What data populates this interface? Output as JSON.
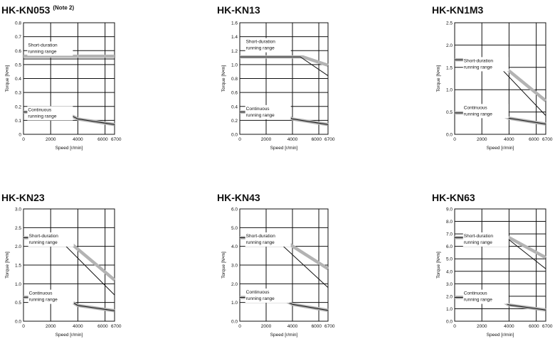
{
  "page": {
    "xlabel": "Speed [r/min]",
    "ylabel": "Torque [N•m]",
    "region_short": [
      "Short-duration",
      "running range"
    ],
    "region_continuous": [
      "Continuous",
      "running range"
    ]
  },
  "chart_data": [
    {
      "type": "line",
      "title": "HK-KN053",
      "title_note": "(Note 2)",
      "xlabel": "Speed [r/min]",
      "ylabel": "Torque [N•m]",
      "xlim": [
        0,
        6700
      ],
      "ylim": [
        0,
        0.8
      ],
      "x_ticks": [
        0,
        2000,
        4000,
        6000,
        6700
      ],
      "y_ticks": [
        0,
        0.1,
        0.2,
        0.3,
        0.4,
        0.5,
        0.6,
        0.7,
        0.8
      ],
      "y_tick_labels": [
        "0",
        "0.1",
        "0.2",
        "0.3",
        "0.4",
        "0.5",
        "0.6",
        "0.7",
        "0.8"
      ],
      "grid": true,
      "series": [
        {
          "role": "short-duration",
          "x": [
            0,
            6700
          ],
          "y": [
            0.56,
            0.56
          ]
        },
        {
          "role": "short-duration-lower",
          "x": [
            0,
            6700
          ],
          "y": [
            0.54,
            0.54
          ]
        },
        {
          "role": "continuous",
          "x": [
            0,
            3000,
            4000,
            6700
          ],
          "y": [
            0.16,
            0.16,
            0.11,
            0.07
          ]
        }
      ]
    },
    {
      "type": "line",
      "title": "HK-KN13",
      "xlabel": "Speed [r/min]",
      "ylabel": "Torque [N•m]",
      "xlim": [
        0,
        6700
      ],
      "ylim": [
        0,
        1.6
      ],
      "x_ticks": [
        0,
        2000,
        4000,
        6000,
        6700
      ],
      "y_ticks": [
        0,
        0.2,
        0.4,
        0.6,
        0.8,
        1.0,
        1.2,
        1.4,
        1.6
      ],
      "y_tick_labels": [
        "0.0",
        "0.2",
        "0.4",
        "0.6",
        "0.8",
        "1.0",
        "1.2",
        "1.4",
        "1.6"
      ],
      "grid": true,
      "series": [
        {
          "role": "short-duration",
          "x": [
            0,
            4800,
            6700
          ],
          "y": [
            1.11,
            1.11,
            0.99
          ]
        },
        {
          "role": "short-duration-lower",
          "x": [
            0,
            4600,
            6700
          ],
          "y": [
            1.11,
            1.11,
            0.84
          ]
        },
        {
          "role": "continuous",
          "x": [
            0,
            3000,
            4000,
            6700
          ],
          "y": [
            0.32,
            0.32,
            0.22,
            0.14
          ]
        }
      ]
    },
    {
      "type": "line",
      "title": "HK-KN1M3",
      "xlabel": "Speed [r/min]",
      "ylabel": "Torque [N•m]",
      "xlim": [
        0,
        6700
      ],
      "ylim": [
        0,
        2.5
      ],
      "x_ticks": [
        0,
        2000,
        4000,
        6000,
        6700
      ],
      "y_ticks": [
        0,
        0.5,
        1.0,
        1.5,
        2.0,
        2.5
      ],
      "y_tick_labels": [
        "0.0",
        "0.5",
        "1.0",
        "1.5",
        "2.0",
        "2.5"
      ],
      "grid": true,
      "series": [
        {
          "role": "short-duration",
          "x": [
            0,
            3000,
            6700
          ],
          "y": [
            1.67,
            1.67,
            0.75
          ]
        },
        {
          "role": "short-duration-lower",
          "x": [
            0,
            2800,
            6700
          ],
          "y": [
            1.67,
            1.67,
            0.42
          ]
        },
        {
          "role": "continuous",
          "x": [
            0,
            3000,
            4000,
            6700
          ],
          "y": [
            0.48,
            0.48,
            0.36,
            0.23
          ]
        }
      ]
    },
    {
      "type": "line",
      "title": "HK-KN23",
      "xlabel": "Speed [r/min]",
      "ylabel": "Torque [N•m]",
      "xlim": [
        0,
        6700
      ],
      "ylim": [
        0,
        3.0
      ],
      "x_ticks": [
        0,
        2000,
        4000,
        6000,
        6700
      ],
      "y_ticks": [
        0,
        0.5,
        1.0,
        1.5,
        2.0,
        2.5,
        3.0
      ],
      "y_tick_labels": [
        "0.0",
        "0.5",
        "1.0",
        "1.5",
        "2.0",
        "2.5",
        "3.0"
      ],
      "grid": true,
      "series": [
        {
          "role": "short-duration",
          "x": [
            0,
            3000,
            6700
          ],
          "y": [
            2.23,
            2.23,
            1.1
          ]
        },
        {
          "role": "short-duration-lower",
          "x": [
            0,
            2500,
            6700
          ],
          "y": [
            2.23,
            2.23,
            0.7
          ]
        },
        {
          "role": "continuous",
          "x": [
            0,
            3000,
            4000,
            6700
          ],
          "y": [
            0.64,
            0.64,
            0.42,
            0.28
          ]
        }
      ]
    },
    {
      "type": "line",
      "title": "HK-KN43",
      "xlabel": "Speed [r/min]",
      "ylabel": "Torque [N•m]",
      "xlim": [
        0,
        6700
      ],
      "ylim": [
        0,
        6.0
      ],
      "x_ticks": [
        0,
        2000,
        4000,
        6000,
        6700
      ],
      "y_ticks": [
        0,
        1.0,
        2.0,
        3.0,
        4.0,
        5.0,
        6.0
      ],
      "y_tick_labels": [
        "0.0",
        "1.0",
        "2.0",
        "3.0",
        "4.0",
        "5.0",
        "6.0"
      ],
      "grid": true,
      "series": [
        {
          "role": "short-duration",
          "x": [
            0,
            3000,
            6700
          ],
          "y": [
            4.46,
            4.46,
            2.8
          ]
        },
        {
          "role": "short-duration-lower",
          "x": [
            0,
            2600,
            6700
          ],
          "y": [
            4.46,
            4.46,
            1.8
          ]
        },
        {
          "role": "continuous",
          "x": [
            0,
            3000,
            4000,
            6700
          ],
          "y": [
            1.27,
            1.27,
            0.9,
            0.58
          ]
        }
      ]
    },
    {
      "type": "line",
      "title": "HK-KN63",
      "xlabel": "Speed [r/min]",
      "ylabel": "Torque [N•m]",
      "xlim": [
        0,
        6700
      ],
      "ylim": [
        0,
        9.0
      ],
      "x_ticks": [
        0,
        2000,
        4000,
        6000,
        6700
      ],
      "y_ticks": [
        0,
        1.0,
        2.0,
        3.0,
        4.0,
        5.0,
        6.0,
        7.0,
        8.0,
        9.0
      ],
      "y_tick_labels": [
        "0.0",
        "1.0",
        "2.0",
        "3.0",
        "4.0",
        "5.0",
        "6.0",
        "7.0",
        "8.0",
        "9.0"
      ],
      "grid": true,
      "series": [
        {
          "role": "short-duration",
          "x": [
            0,
            4000,
            6700
          ],
          "y": [
            6.7,
            6.7,
            5.1
          ]
        },
        {
          "role": "short-duration-lower",
          "x": [
            0,
            3800,
            6700
          ],
          "y": [
            6.7,
            6.7,
            4.2
          ]
        },
        {
          "role": "continuous",
          "x": [
            0,
            3000,
            4000,
            6700
          ],
          "y": [
            1.91,
            1.91,
            1.3,
            0.9
          ]
        }
      ]
    }
  ]
}
